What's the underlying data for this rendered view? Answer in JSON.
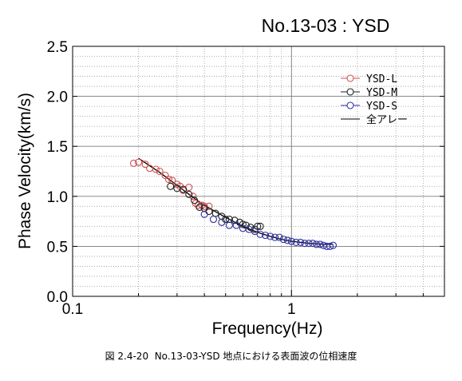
{
  "caption": "図 2.4-20  No.13-03-YSD 地点における表面波の位相速度",
  "chart_data": {
    "type": "scatter",
    "title": "No.13-03 : YSD",
    "xlabel": "Frequency(Hz)",
    "ylabel": "Phase Velocity(km/s)",
    "x_scale": "log",
    "xlim": [
      0.1,
      5
    ],
    "ylim": [
      0,
      2.5
    ],
    "x_ticks": [
      0.1,
      1
    ],
    "x_tick_labels": [
      "0.1",
      "1"
    ],
    "y_ticks": [
      0,
      0.5,
      1,
      1.5,
      2,
      2.5
    ],
    "y_tick_labels": [
      "0.0",
      "0.5",
      "1.0",
      "1.5",
      "2.0",
      "2.5"
    ],
    "grid": true,
    "legend_position": "top-right",
    "colors": {
      "YSD-L": "#d05050",
      "YSD-M": "#202020",
      "YSD-S": "#3030a0",
      "array": "#000000"
    },
    "series": [
      {
        "name": "YSD-L",
        "marker": "circle",
        "x": [
          0.19,
          0.2,
          0.215,
          0.225,
          0.24,
          0.25,
          0.265,
          0.275,
          0.285,
          0.3,
          0.31,
          0.32,
          0.34,
          0.355,
          0.365,
          0.375,
          0.39,
          0.4,
          0.42
        ],
        "y": [
          1.33,
          1.34,
          1.32,
          1.28,
          1.27,
          1.25,
          1.21,
          1.17,
          1.16,
          1.12,
          1.1,
          1.06,
          1.09,
          1.0,
          0.93,
          0.91,
          0.91,
          0.9,
          0.9
        ]
      },
      {
        "name": "YSD-M",
        "marker": "circle",
        "x": [
          0.28,
          0.3,
          0.32,
          0.34,
          0.36,
          0.38,
          0.4,
          0.42,
          0.45,
          0.48,
          0.5,
          0.52,
          0.55,
          0.58,
          0.6,
          0.62,
          0.65,
          0.68,
          0.7,
          0.72
        ],
        "y": [
          1.1,
          1.08,
          1.07,
          1.02,
          0.96,
          0.89,
          0.88,
          0.85,
          0.83,
          0.8,
          0.77,
          0.77,
          0.76,
          0.74,
          0.72,
          0.71,
          0.69,
          0.67,
          0.7,
          0.7
        ]
      },
      {
        "name": "YSD-S",
        "marker": "circle",
        "x": [
          0.4,
          0.44,
          0.48,
          0.52,
          0.56,
          0.6,
          0.64,
          0.68,
          0.72,
          0.76,
          0.8,
          0.84,
          0.88,
          0.92,
          0.96,
          1.0,
          1.05,
          1.1,
          1.15,
          1.2,
          1.25,
          1.3,
          1.35,
          1.4,
          1.45,
          1.5,
          1.55
        ],
        "y": [
          0.82,
          0.77,
          0.74,
          0.71,
          0.71,
          0.68,
          0.67,
          0.65,
          0.62,
          0.61,
          0.6,
          0.59,
          0.59,
          0.57,
          0.56,
          0.55,
          0.54,
          0.54,
          0.53,
          0.53,
          0.53,
          0.52,
          0.52,
          0.51,
          0.5,
          0.5,
          0.51
        ]
      },
      {
        "name": "全アレー",
        "marker": "line",
        "x": [
          0.2,
          0.25,
          0.3,
          0.35,
          0.4,
          0.5,
          0.6,
          0.7,
          0.8,
          0.9,
          1.0,
          1.2,
          1.4,
          1.55
        ],
        "y": [
          1.38,
          1.24,
          1.11,
          1.0,
          0.91,
          0.79,
          0.7,
          0.64,
          0.6,
          0.57,
          0.55,
          0.53,
          0.52,
          0.52
        ]
      }
    ]
  }
}
